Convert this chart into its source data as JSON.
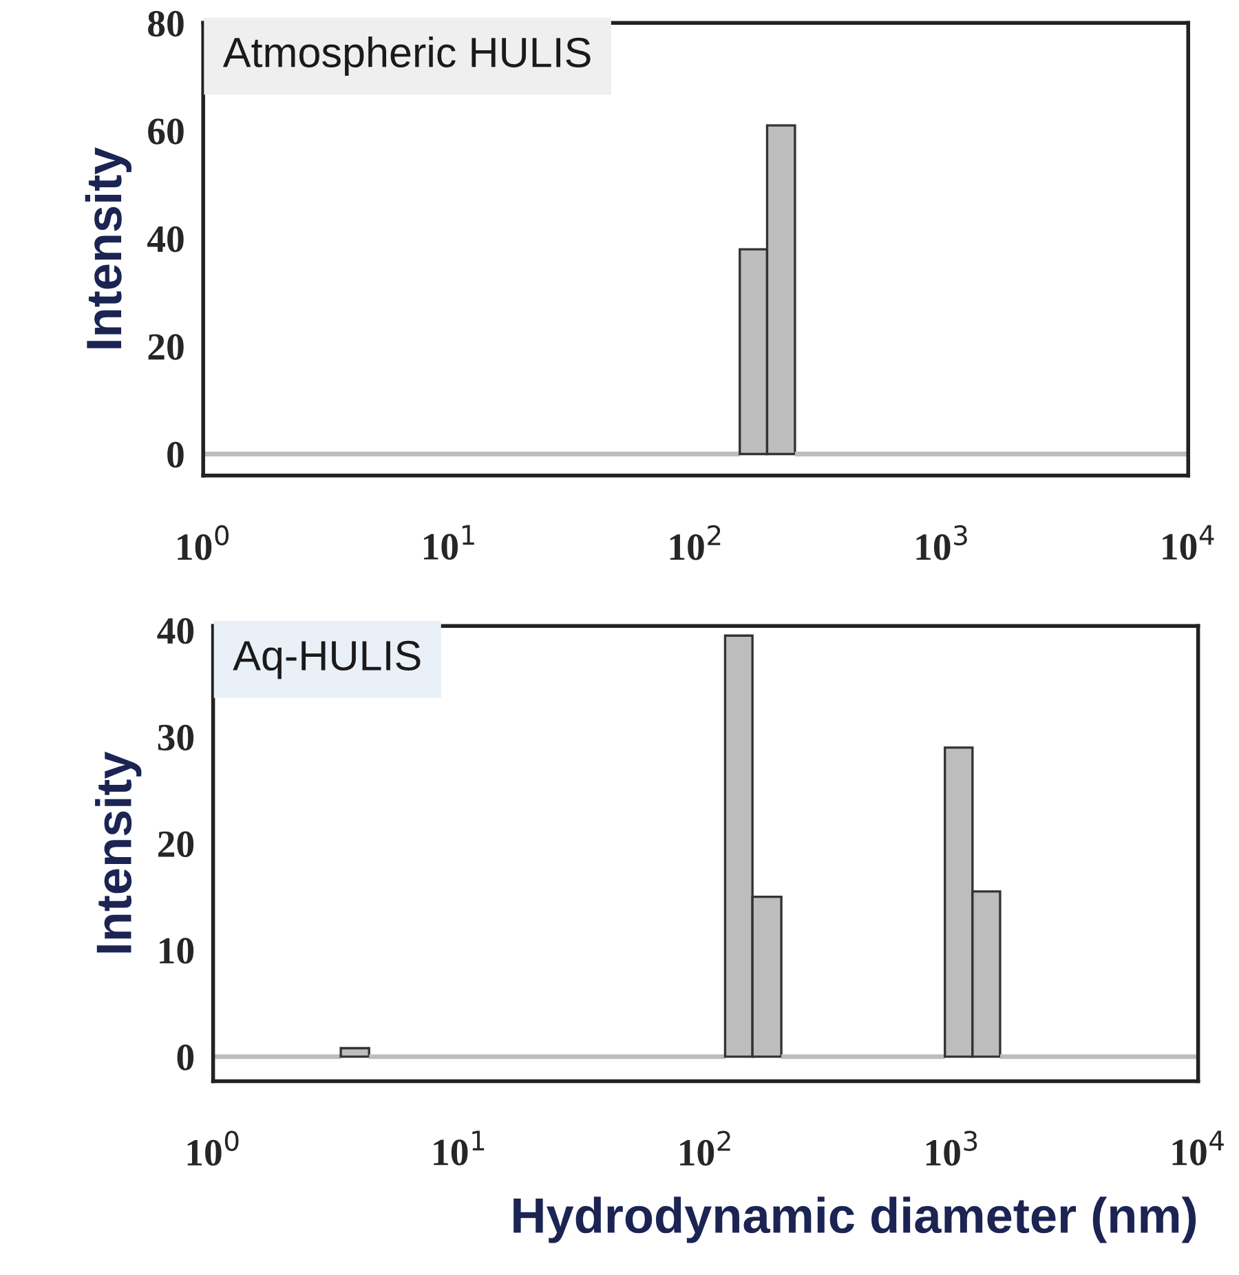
{
  "chart_data": [
    {
      "type": "histogram",
      "ylabel": "Intensity",
      "annotations": [
        "Atmospheric HULIS"
      ],
      "color": "#bdbdbd",
      "bins": [
        1,
        151,
        195,
        253,
        10000
      ],
      "values": [
        0,
        38,
        61,
        0
      ],
      "log": "x",
      "xlim": [
        1,
        10000
      ],
      "xticks": [
        {
          "value": 1,
          "label": "10$^{0}$"
        },
        {
          "value": 10,
          "label": "10$^{1}$"
        },
        {
          "value": 100,
          "label": "10$^{2}$"
        },
        {
          "value": 1000,
          "label": "10$^{3}$"
        },
        {
          "value": 10000,
          "label": "10$^{4}$"
        }
      ],
      "ylim": [
        -4,
        80
      ],
      "yticks": [
        0,
        20,
        40,
        60,
        80
      ],
      "grid": false
    },
    {
      "type": "histogram",
      "ylabel": "Intensity",
      "xlabel": "Hydrodynamic diameter (nm)",
      "annotations": [
        "Aq-HULIS"
      ],
      "color": "#bdbdbd",
      "bins": [
        1,
        3.3,
        4.3,
        120,
        155,
        203,
        937,
        1213,
        1570,
        10000
      ],
      "values": [
        0,
        0.8,
        0,
        39.5,
        15,
        0,
        29,
        15.5,
        0
      ],
      "log": "x",
      "xlim": [
        1,
        10000
      ],
      "xticks": [
        {
          "value": 1,
          "label": "10$^{0}$"
        },
        {
          "value": 10,
          "label": "10$^{1}$"
        },
        {
          "value": 100,
          "label": "10$^{2}$"
        },
        {
          "value": 1000,
          "label": "10$^{3}$"
        },
        {
          "value": 10000,
          "label": "10$^{4}$"
        }
      ],
      "ylim": [
        -2.3,
        40.4
      ],
      "yticks": [
        0,
        10,
        20,
        30,
        40
      ],
      "grid": false
    }
  ]
}
